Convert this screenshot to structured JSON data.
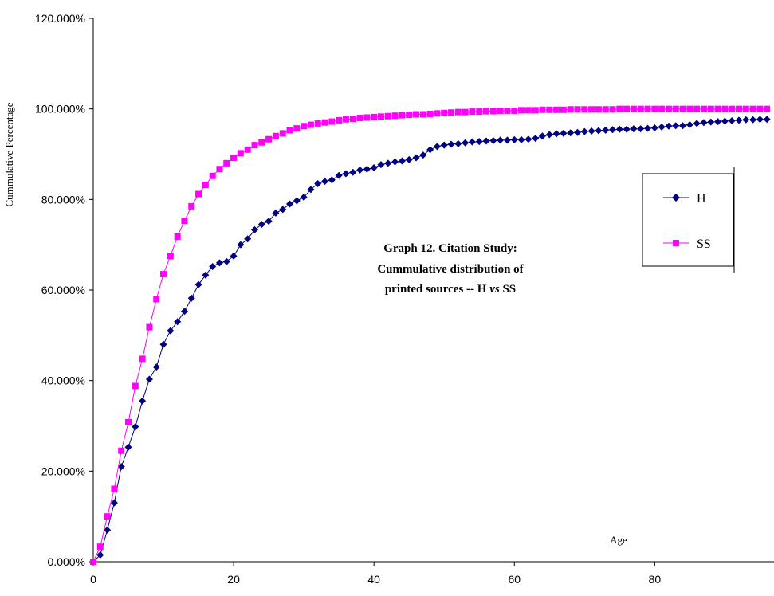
{
  "chart_data": {
    "type": "line",
    "title": "",
    "annotation": {
      "line1": "Graph 12.  Citation Study:",
      "line2": "Cummulative distribution of",
      "line3_prefix": "printed sources -- H ",
      "line3_vs": "vs",
      "line3_suffix": " SS"
    },
    "xlabel": "Age",
    "ylabel": "Cummulative Percentage",
    "xlim": [
      0,
      97
    ],
    "ylim": [
      0,
      1.2
    ],
    "x_ticks": [
      0,
      20,
      40,
      60,
      80
    ],
    "y_ticks": [
      0,
      0.2,
      0.4,
      0.6,
      0.8,
      1.0,
      1.2
    ],
    "y_tick_labels": [
      "0.000%",
      "20.000%",
      "40.000%",
      "60.000%",
      "80.000%",
      "100.000%",
      "120.000%"
    ],
    "grid": false,
    "legend_position": "right",
    "series": [
      {
        "name": "H",
        "color": "#000080",
        "marker": "diamond",
        "x": [
          0,
          1,
          2,
          3,
          4,
          5,
          6,
          7,
          8,
          9,
          10,
          11,
          12,
          13,
          14,
          15,
          16,
          17,
          18,
          19,
          20,
          21,
          22,
          23,
          24,
          25,
          26,
          27,
          28,
          29,
          30,
          31,
          32,
          33,
          34,
          35,
          36,
          37,
          38,
          39,
          40,
          41,
          42,
          43,
          44,
          45,
          46,
          47,
          48,
          49,
          50,
          51,
          52,
          53,
          54,
          55,
          56,
          57,
          58,
          59,
          60,
          61,
          62,
          63,
          64,
          65,
          66,
          67,
          68,
          69,
          70,
          71,
          72,
          73,
          74,
          75,
          76,
          77,
          78,
          79,
          80,
          81,
          82,
          83,
          84,
          85,
          86,
          87,
          88,
          89,
          90,
          91,
          92,
          93,
          94,
          95,
          96
        ],
        "values": [
          0.0,
          0.015,
          0.07,
          0.13,
          0.21,
          0.253,
          0.298,
          0.355,
          0.403,
          0.43,
          0.48,
          0.51,
          0.53,
          0.553,
          0.582,
          0.612,
          0.633,
          0.652,
          0.66,
          0.663,
          0.675,
          0.7,
          0.713,
          0.733,
          0.745,
          0.752,
          0.77,
          0.778,
          0.79,
          0.797,
          0.805,
          0.822,
          0.835,
          0.84,
          0.843,
          0.853,
          0.857,
          0.86,
          0.865,
          0.867,
          0.87,
          0.877,
          0.88,
          0.883,
          0.885,
          0.888,
          0.892,
          0.898,
          0.91,
          0.917,
          0.92,
          0.922,
          0.923,
          0.925,
          0.927,
          0.928,
          0.929,
          0.93,
          0.931,
          0.931,
          0.932,
          0.932,
          0.933,
          0.935,
          0.94,
          0.943,
          0.945,
          0.946,
          0.947,
          0.948,
          0.95,
          0.951,
          0.952,
          0.953,
          0.954,
          0.955,
          0.955,
          0.956,
          0.956,
          0.957,
          0.958,
          0.96,
          0.962,
          0.963,
          0.963,
          0.965,
          0.968,
          0.97,
          0.971,
          0.972,
          0.973,
          0.974,
          0.975,
          0.976,
          0.976,
          0.977,
          0.977
        ]
      },
      {
        "name": "SS",
        "color": "#FF00FF",
        "marker": "square",
        "x": [
          0,
          1,
          2,
          3,
          4,
          5,
          6,
          7,
          8,
          9,
          10,
          11,
          12,
          13,
          14,
          15,
          16,
          17,
          18,
          19,
          20,
          21,
          22,
          23,
          24,
          25,
          26,
          27,
          28,
          29,
          30,
          31,
          32,
          33,
          34,
          35,
          36,
          37,
          38,
          39,
          40,
          41,
          42,
          43,
          44,
          45,
          46,
          47,
          48,
          49,
          50,
          51,
          52,
          53,
          54,
          55,
          56,
          57,
          58,
          59,
          60,
          61,
          62,
          63,
          64,
          65,
          66,
          67,
          68,
          69,
          70,
          71,
          72,
          73,
          74,
          75,
          76,
          77,
          78,
          79,
          80,
          81,
          82,
          83,
          84,
          85,
          86,
          87,
          88,
          89,
          90,
          91,
          92,
          93,
          94,
          95,
          96
        ],
        "values": [
          0.0,
          0.033,
          0.1,
          0.161,
          0.245,
          0.308,
          0.388,
          0.448,
          0.518,
          0.58,
          0.635,
          0.675,
          0.718,
          0.753,
          0.785,
          0.812,
          0.832,
          0.852,
          0.867,
          0.88,
          0.892,
          0.902,
          0.91,
          0.92,
          0.926,
          0.933,
          0.94,
          0.946,
          0.953,
          0.957,
          0.962,
          0.965,
          0.968,
          0.97,
          0.972,
          0.975,
          0.977,
          0.978,
          0.98,
          0.981,
          0.982,
          0.983,
          0.984,
          0.985,
          0.986,
          0.987,
          0.988,
          0.988,
          0.989,
          0.99,
          0.991,
          0.992,
          0.993,
          0.993,
          0.994,
          0.994,
          0.995,
          0.995,
          0.996,
          0.996,
          0.996,
          0.997,
          0.997,
          0.997,
          0.998,
          0.998,
          0.998,
          0.998,
          0.999,
          0.999,
          0.999,
          0.999,
          0.999,
          0.999,
          0.999,
          1.0,
          1.0,
          1.0,
          1.0,
          1.0,
          1.0,
          1.0,
          1.0,
          1.0,
          1.0,
          1.0,
          1.0,
          1.0,
          1.0,
          1.0,
          1.0,
          1.0,
          1.0,
          1.0,
          1.0,
          1.0,
          1.0
        ]
      }
    ]
  }
}
